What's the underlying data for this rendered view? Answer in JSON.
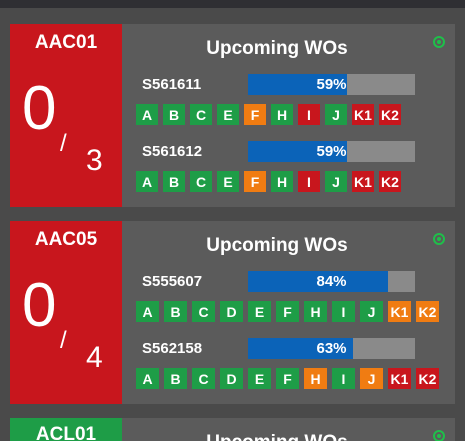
{
  "cards": [
    {
      "station": "AAC01",
      "count": "0",
      "slash": "/",
      "total": "3",
      "panel_title": "Upcoming WOs",
      "work_orders": [
        {
          "id": "S561611",
          "progress_label": "59%",
          "progress": 59,
          "steps": [
            {
              "label": "A",
              "status": "green"
            },
            {
              "label": "B",
              "status": "green"
            },
            {
              "label": "C",
              "status": "green"
            },
            {
              "label": "E",
              "status": "green"
            },
            {
              "label": "F",
              "status": "orange"
            },
            {
              "label": "H",
              "status": "green"
            },
            {
              "label": "I",
              "status": "red"
            },
            {
              "label": "J",
              "status": "green"
            },
            {
              "label": "K1",
              "status": "red"
            },
            {
              "label": "K2",
              "status": "red"
            }
          ]
        },
        {
          "id": "S561612",
          "progress_label": "59%",
          "progress": 59,
          "steps": [
            {
              "label": "A",
              "status": "green"
            },
            {
              "label": "B",
              "status": "green"
            },
            {
              "label": "C",
              "status": "green"
            },
            {
              "label": "E",
              "status": "green"
            },
            {
              "label": "F",
              "status": "orange"
            },
            {
              "label": "H",
              "status": "green"
            },
            {
              "label": "I",
              "status": "red"
            },
            {
              "label": "J",
              "status": "green"
            },
            {
              "label": "K1",
              "status": "red"
            },
            {
              "label": "K2",
              "status": "red"
            }
          ]
        }
      ]
    },
    {
      "station": "AAC05",
      "count": "0",
      "slash": "/",
      "total": "4",
      "panel_title": "Upcoming WOs",
      "work_orders": [
        {
          "id": "S555607",
          "progress_label": "84%",
          "progress": 84,
          "steps": [
            {
              "label": "A",
              "status": "green"
            },
            {
              "label": "B",
              "status": "green"
            },
            {
              "label": "C",
              "status": "green"
            },
            {
              "label": "D",
              "status": "green"
            },
            {
              "label": "E",
              "status": "green"
            },
            {
              "label": "F",
              "status": "green"
            },
            {
              "label": "H",
              "status": "green"
            },
            {
              "label": "I",
              "status": "green"
            },
            {
              "label": "J",
              "status": "green"
            },
            {
              "label": "K1",
              "status": "orange"
            },
            {
              "label": "K2",
              "status": "orange"
            }
          ]
        },
        {
          "id": "S562158",
          "progress_label": "63%",
          "progress": 63,
          "steps": [
            {
              "label": "A",
              "status": "green"
            },
            {
              "label": "B",
              "status": "green"
            },
            {
              "label": "C",
              "status": "green"
            },
            {
              "label": "D",
              "status": "green"
            },
            {
              "label": "E",
              "status": "green"
            },
            {
              "label": "F",
              "status": "green"
            },
            {
              "label": "H",
              "status": "orange"
            },
            {
              "label": "I",
              "status": "green"
            },
            {
              "label": "J",
              "status": "orange"
            },
            {
              "label": "K1",
              "status": "red"
            },
            {
              "label": "K2",
              "status": "red"
            }
          ]
        }
      ]
    },
    {
      "station": "ACL01",
      "panel_title": "Upcoming WOs"
    }
  ],
  "colors": {
    "green": "#1e9d47",
    "orange": "#f07c12",
    "red": "#c8161d",
    "progress_fill": "#0b63b8",
    "progress_track": "#8a8a8a",
    "panel": "#5b5b5b"
  },
  "icons": {
    "status": "status-ok-icon"
  }
}
